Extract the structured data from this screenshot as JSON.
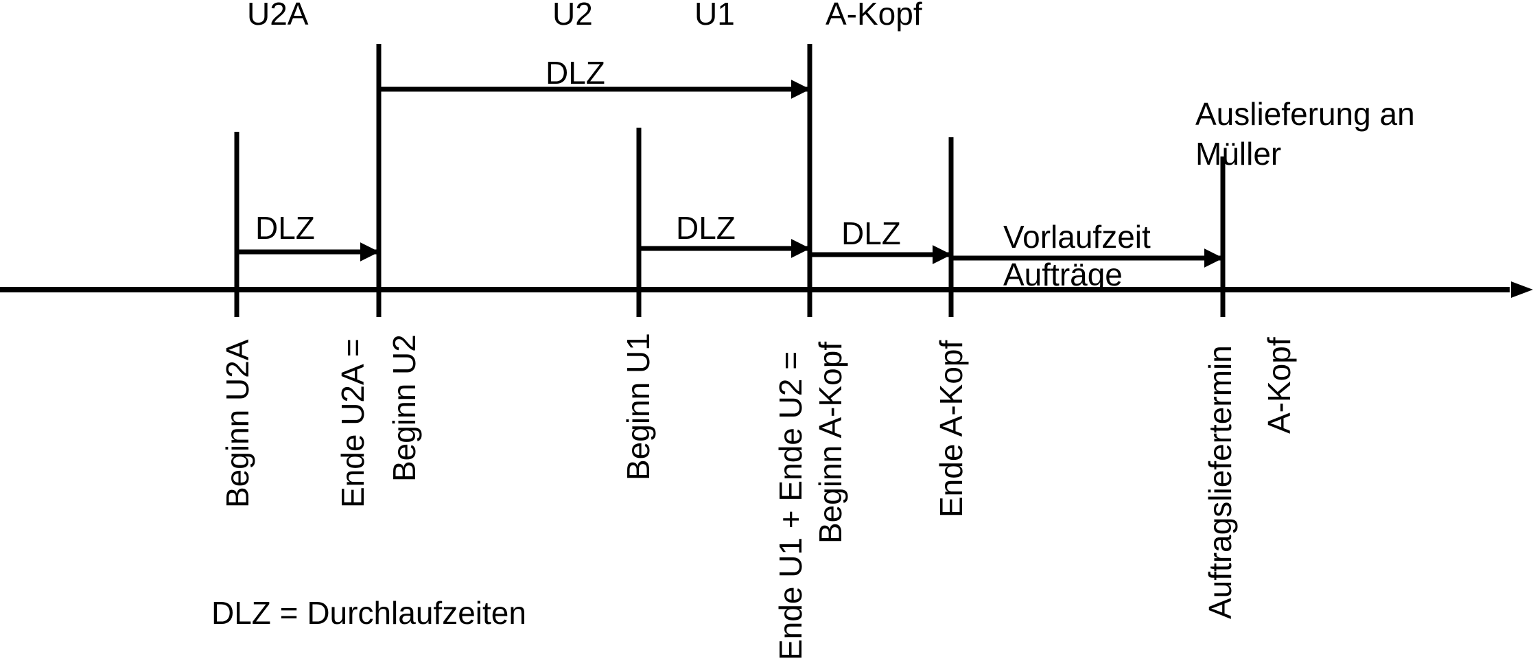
{
  "top_labels": {
    "u2a": "U2A",
    "u2": "U2",
    "u1": "U1",
    "a_kopf": "A-Kopf"
  },
  "arrow_labels": {
    "dlz_u2_u1": "DLZ",
    "dlz_u2a": "DLZ",
    "dlz_u1": "DLZ",
    "dlz_a_kopf": "DLZ",
    "vorlauf_line1": "Vorlaufzeit",
    "vorlauf_line2": "Aufträge"
  },
  "auslieferung": {
    "line1": "Auslieferung an",
    "line2": "Müller"
  },
  "milestones": {
    "beginn_u2a": "Beginn U2A",
    "ende_u2a_line1": "Ende U2A =",
    "ende_u2a_line2": "Beginn U2",
    "beginn_u1": "Beginn U1",
    "ende_u1_line1": "Ende U1 + Ende U2 =",
    "ende_u1_line2": "Beginn A-Kopf",
    "ende_a_kopf": "Ende A-Kopf",
    "auftragsliefertermin": "Auftragsliefertermin",
    "a_kopf": "A-Kopf"
  },
  "legend": "DLZ = Durchlaufzeiten"
}
